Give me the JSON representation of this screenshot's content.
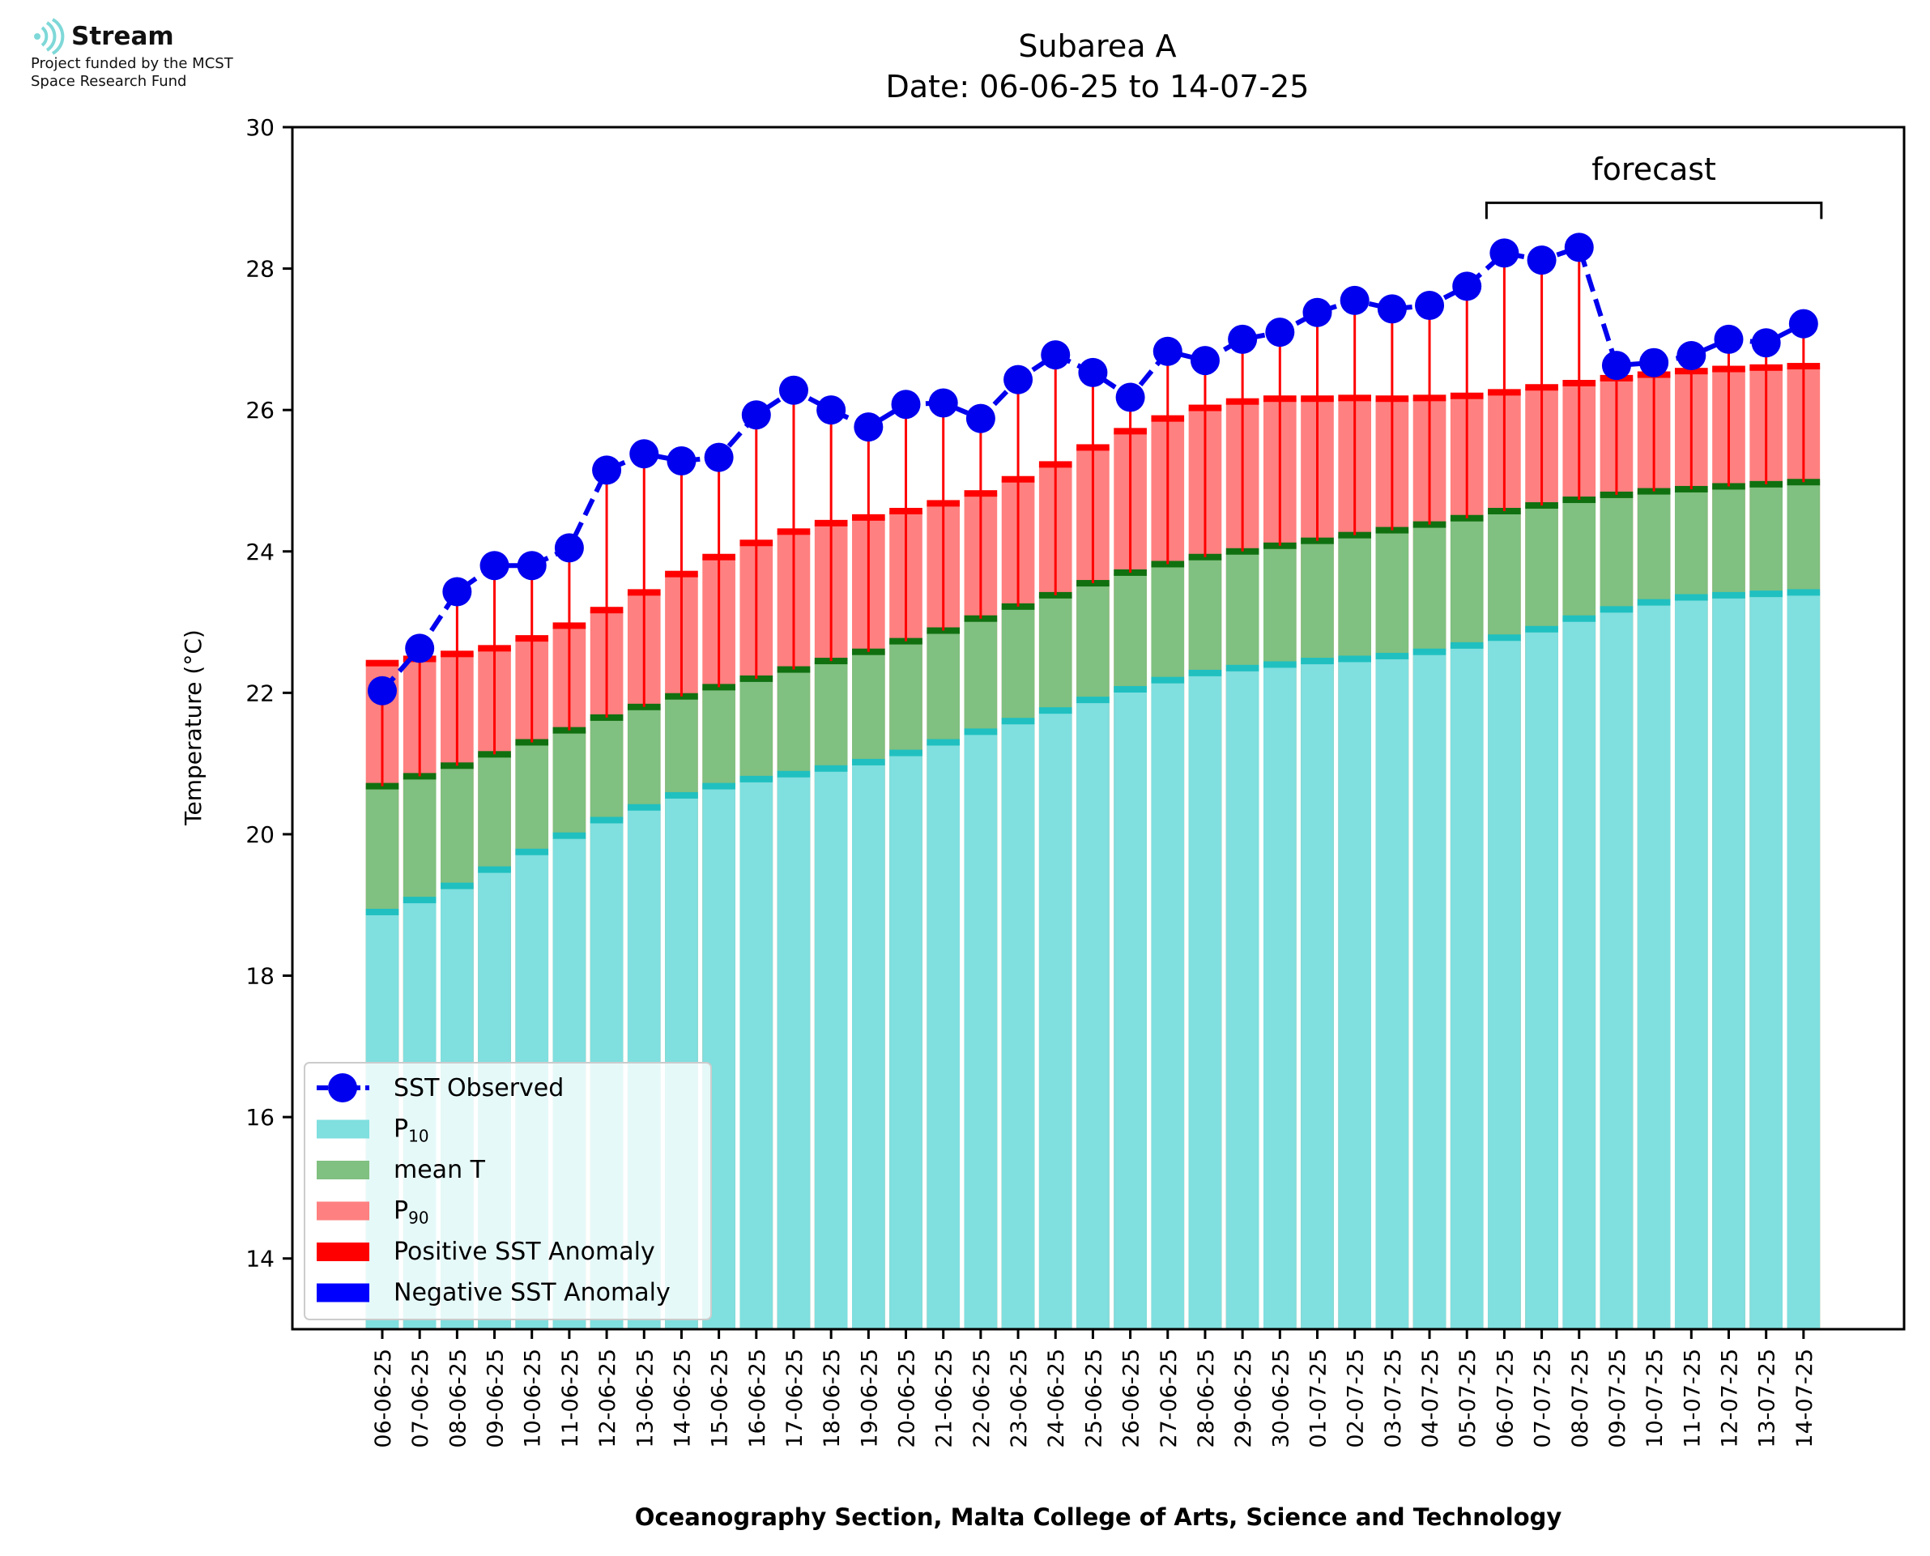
{
  "logo": {
    "name": "Stream",
    "funded_line1": "Project funded by the MCST",
    "funded_line2": "Space Research Fund",
    "icon": "stream-waves-icon",
    "color": "#7fd8d8"
  },
  "chart_data": {
    "type": "bar",
    "title": "Subarea A",
    "subtitle": "Date: 06-06-25 to 14-07-25",
    "ylabel": "Temperature (°C)",
    "xlabel": "Oceanography Section, Malta College of Arts, Science and Technology",
    "ylim": [
      13,
      30
    ],
    "yticks": [
      14,
      16,
      18,
      20,
      22,
      24,
      26,
      28,
      30
    ],
    "categories": [
      "06-06-25",
      "07-06-25",
      "08-06-25",
      "09-06-25",
      "10-06-25",
      "11-06-25",
      "12-06-25",
      "13-06-25",
      "14-06-25",
      "15-06-25",
      "16-06-25",
      "17-06-25",
      "18-06-25",
      "19-06-25",
      "20-06-25",
      "21-06-25",
      "22-06-25",
      "23-06-25",
      "24-06-25",
      "25-06-25",
      "26-06-25",
      "27-06-25",
      "28-06-25",
      "29-06-25",
      "30-06-25",
      "01-07-25",
      "02-07-25",
      "03-07-25",
      "04-07-25",
      "05-07-25",
      "06-07-25",
      "07-07-25",
      "08-07-25",
      "09-07-25",
      "10-07-25",
      "11-07-25",
      "12-07-25",
      "13-07-25",
      "14-07-25"
    ],
    "series": [
      {
        "name": "P10",
        "color": "#80dfdf",
        "edge_color": "#20c0c0",
        "values": [
          18.9,
          19.07,
          19.27,
          19.5,
          19.75,
          19.98,
          20.2,
          20.38,
          20.55,
          20.68,
          20.78,
          20.85,
          20.93,
          21.02,
          21.15,
          21.3,
          21.45,
          21.6,
          21.75,
          21.9,
          22.05,
          22.18,
          22.28,
          22.35,
          22.4,
          22.45,
          22.48,
          22.52,
          22.58,
          22.67,
          22.78,
          22.9,
          23.05,
          23.18,
          23.28,
          23.35,
          23.38,
          23.4,
          23.42
        ]
      },
      {
        "name": "mean T",
        "color": "#80c080",
        "edge_color": "#107010",
        "values": [
          20.68,
          20.82,
          20.97,
          21.13,
          21.3,
          21.47,
          21.65,
          21.8,
          21.95,
          22.08,
          22.2,
          22.33,
          22.45,
          22.58,
          22.73,
          22.88,
          23.05,
          23.22,
          23.38,
          23.55,
          23.7,
          23.82,
          23.92,
          24.0,
          24.08,
          24.15,
          24.23,
          24.3,
          24.38,
          24.47,
          24.57,
          24.65,
          24.73,
          24.8,
          24.85,
          24.88,
          24.92,
          24.95,
          24.98
        ]
      },
      {
        "name": "P90",
        "color": "#ff8080",
        "edge_color": "#ff0000",
        "values": [
          22.42,
          22.48,
          22.55,
          22.63,
          22.77,
          22.95,
          23.17,
          23.42,
          23.68,
          23.92,
          24.12,
          24.28,
          24.4,
          24.48,
          24.57,
          24.68,
          24.82,
          25.02,
          25.23,
          25.47,
          25.7,
          25.88,
          26.03,
          26.12,
          26.16,
          26.16,
          26.17,
          26.16,
          26.17,
          26.2,
          26.25,
          26.32,
          26.38,
          26.45,
          26.5,
          26.55,
          26.58,
          26.6,
          26.62
        ]
      },
      {
        "name": "SST Observed",
        "color": "#0000ee",
        "values": [
          22.03,
          22.63,
          23.43,
          23.8,
          23.8,
          24.05,
          25.15,
          25.38,
          25.28,
          25.33,
          25.93,
          26.28,
          26.0,
          25.76,
          26.08,
          26.1,
          25.88,
          26.43,
          26.78,
          26.53,
          26.18,
          26.83,
          26.7,
          27.0,
          27.1,
          27.38,
          27.55,
          27.43,
          27.48,
          27.75,
          28.22,
          28.12,
          28.3,
          26.63,
          26.67,
          26.77,
          27.0,
          26.95,
          27.22
        ]
      }
    ],
    "legend": {
      "placement": "lower-left",
      "entries": [
        "SST Observed",
        "P10",
        "mean T",
        "P90",
        "Positive SST Anomaly",
        "Negative SST Anomaly"
      ]
    },
    "anomaly_colors": {
      "positive": "#ff0000",
      "negative": "#0000ff"
    },
    "annotation": {
      "text": "forecast",
      "from_category": "06-07-25",
      "to_category": "14-07-25"
    },
    "grid": false
  }
}
